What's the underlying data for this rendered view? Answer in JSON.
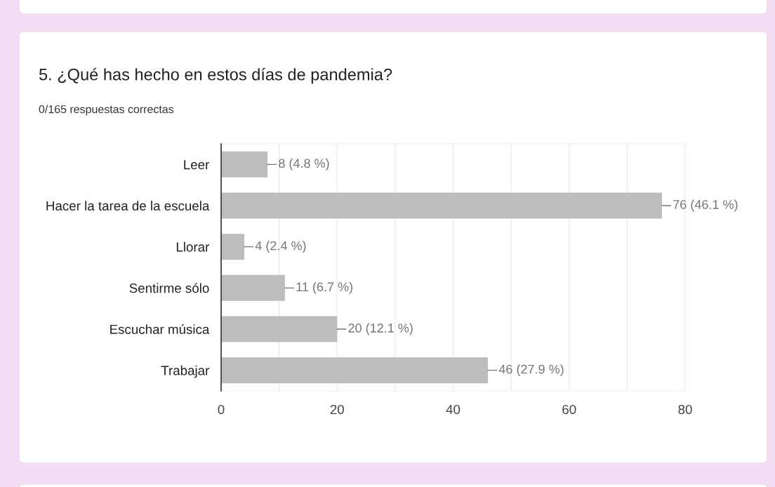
{
  "chart_data": {
    "type": "bar",
    "orientation": "horizontal",
    "title": "5. ¿Qué has hecho en estos días de pandemia?",
    "subtitle": "0/165 respuestas correctas",
    "categories": [
      "Leer",
      "Hacer la tarea de la escuela",
      "Llorar",
      "Sentirme sólo",
      "Escuchar música",
      "Trabajar"
    ],
    "values": [
      8,
      76,
      4,
      11,
      20,
      46
    ],
    "color": "#bdbdbd",
    "value_labels": [
      "8 (4.8 %)",
      "76 (46.1 %)",
      "4 (2.4 %)",
      "11 (6.7 %)",
      "20 (12.1 %)",
      "46 (27.9 %)"
    ],
    "xlim": [
      0,
      80
    ],
    "xticks": [
      0,
      {
        "value": 10,
        "label": null
      },
      20,
      {
        "value": 30,
        "label": null
      },
      40,
      {
        "value": 50,
        "label": null
      },
      60,
      {
        "value": 70,
        "label": null
      },
      80
    ],
    "grid": "x"
  }
}
